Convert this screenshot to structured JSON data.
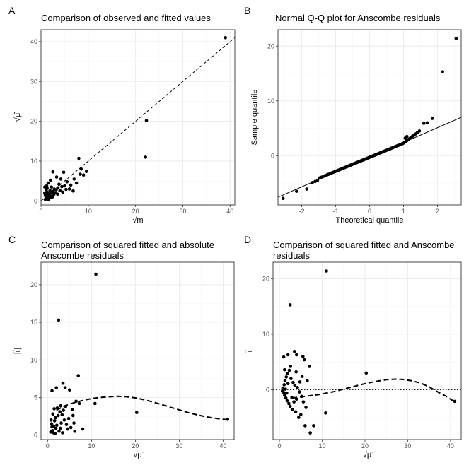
{
  "chart_data": [
    {
      "type": "scatter",
      "panel": "A",
      "title": "Comparison of observed and fitted values",
      "xlabel": "√m",
      "ylabel": "√μ̂",
      "xlim": [
        0,
        41
      ],
      "ylim": [
        -1,
        43
      ],
      "xticks": [
        0,
        10,
        20,
        30,
        40
      ],
      "yticks": [
        0,
        10,
        20,
        30,
        40
      ],
      "grid": true,
      "reference_line": {
        "kind": "dashed",
        "slope": 1,
        "intercept": 0
      },
      "points": [
        [
          39,
          41
        ],
        [
          22.3,
          20.2
        ],
        [
          22.1,
          11
        ],
        [
          8,
          10.7
        ],
        [
          8.5,
          8
        ],
        [
          9.6,
          7.4
        ],
        [
          8.3,
          6.7
        ],
        [
          9,
          6.5
        ],
        [
          7,
          5.5
        ],
        [
          7.5,
          4.5
        ],
        [
          6.3,
          4
        ],
        [
          5.5,
          4.8
        ],
        [
          2.5,
          7.3
        ],
        [
          4.8,
          7.2
        ],
        [
          3.3,
          6
        ],
        [
          4.2,
          5.5
        ],
        [
          2,
          5.2
        ],
        [
          1.5,
          4.5
        ],
        [
          1.2,
          3.8
        ],
        [
          2.2,
          3.5
        ],
        [
          2.8,
          3
        ],
        [
          3.6,
          3.3
        ],
        [
          4.4,
          3.6
        ],
        [
          5,
          3.8
        ],
        [
          6,
          3
        ],
        [
          6.8,
          2.5
        ],
        [
          1.1,
          2.8
        ],
        [
          1.3,
          2.2
        ],
        [
          1.6,
          1.8
        ],
        [
          1.8,
          1.5
        ],
        [
          2.1,
          1.2
        ],
        [
          2.4,
          1
        ],
        [
          2.6,
          2.4
        ],
        [
          3,
          2
        ],
        [
          3.5,
          1.7
        ],
        [
          4,
          2.6
        ],
        [
          0.9,
          1.5
        ],
        [
          1,
          1.2
        ],
        [
          1.1,
          0.9
        ],
        [
          1.2,
          0.7
        ],
        [
          1.4,
          0.6
        ],
        [
          1.5,
          1
        ],
        [
          1.7,
          1.3
        ],
        [
          0.8,
          2
        ],
        [
          0.9,
          0.4
        ],
        [
          1.3,
          3.2
        ],
        [
          1.9,
          2.6
        ],
        [
          2.3,
          2.1
        ],
        [
          3.2,
          2.8
        ],
        [
          3.8,
          4.2
        ],
        [
          4.6,
          2.2
        ],
        [
          5.3,
          2.9
        ],
        [
          0.8,
          3.5
        ],
        [
          1.6,
          0.3
        ],
        [
          2,
          0.8
        ],
        [
          2.7,
          1.6
        ]
      ]
    },
    {
      "type": "scatter",
      "panel": "B",
      "title": "Normal Q-Q plot for Anscombe residuals",
      "xlabel": "Theoretical quantile",
      "ylabel": "Sample quantile",
      "xlim": [
        -2.7,
        2.7
      ],
      "ylim": [
        -9,
        23
      ],
      "xticks": [
        -2,
        -1,
        0,
        1,
        2
      ],
      "yticks": [
        0,
        10,
        20
      ],
      "grid": true,
      "reference_line": {
        "kind": "solid",
        "slope": 2.7,
        "intercept": -0.3
      },
      "qq_points": {
        "n": 120,
        "tail_upper": [
          [
            1.6,
            5.9
          ],
          [
            1.7,
            6
          ],
          [
            1.85,
            6.8
          ],
          [
            2.15,
            15.3
          ],
          [
            2.55,
            21.4
          ]
        ],
        "tail_lower": [
          [
            -2.55,
            -7.8
          ],
          [
            -2.15,
            -6.5
          ],
          [
            -1.85,
            -6.1
          ]
        ]
      }
    },
    {
      "type": "scatter",
      "panel": "C",
      "title": "Comparison of squared fitted and absolute",
      "subtitle": "Anscombe residuals",
      "xlabel": "√μ̂",
      "ylabel": "|r̂|",
      "xlim": [
        -1.5,
        42.5
      ],
      "ylim": [
        -0.6,
        23
      ],
      "xticks": [
        0,
        10,
        20,
        30,
        40
      ],
      "yticks": [
        0,
        5,
        10,
        15,
        20
      ],
      "grid": true,
      "smooth_line": {
        "kind": "dashed",
        "x": [
          2,
          4,
          6,
          8,
          10,
          12,
          14,
          16,
          18,
          20,
          22,
          24,
          26,
          28,
          30,
          32,
          34,
          36,
          38,
          40,
          41
        ],
        "y": [
          3.3,
          3.9,
          4.3,
          4.6,
          4.85,
          5.0,
          5.1,
          5.15,
          5.1,
          4.95,
          4.7,
          4.4,
          4.05,
          3.7,
          3.35,
          3.0,
          2.7,
          2.45,
          2.25,
          2.1,
          2.05
        ]
      },
      "points": [
        [
          11,
          21.4
        ],
        [
          2.5,
          15.3
        ],
        [
          7,
          7.9
        ],
        [
          1,
          5.9
        ],
        [
          2,
          6.3
        ],
        [
          3.5,
          6.9
        ],
        [
          4,
          6.3
        ],
        [
          5,
          6
        ],
        [
          6.5,
          4.5
        ],
        [
          7.2,
          4.2
        ],
        [
          10.8,
          4.2
        ],
        [
          20.3,
          3
        ],
        [
          41,
          2.1
        ],
        [
          8,
          0.8
        ],
        [
          6,
          1.6
        ],
        [
          4.8,
          2.2
        ],
        [
          3,
          3.9
        ],
        [
          2.2,
          3.6
        ],
        [
          1.5,
          3.5
        ],
        [
          1.2,
          2.8
        ],
        [
          0.8,
          2
        ],
        [
          0.9,
          1.5
        ],
        [
          1,
          1.1
        ],
        [
          1.1,
          0.6
        ],
        [
          1.3,
          0.3
        ],
        [
          1.6,
          1.9
        ],
        [
          1.8,
          2.3
        ],
        [
          2.4,
          2.6
        ],
        [
          2.8,
          3.1
        ],
        [
          3.3,
          2.7
        ],
        [
          3.8,
          2
        ],
        [
          4.3,
          1.4
        ],
        [
          4.6,
          0.8
        ],
        [
          5.3,
          1
        ],
        [
          1.9,
          0.9
        ],
        [
          2.1,
          1.3
        ],
        [
          2.6,
          0.5
        ],
        [
          3.1,
          1.6
        ],
        [
          3.6,
          3.3
        ],
        [
          4.1,
          3.8
        ],
        [
          5.6,
          3.4
        ],
        [
          1.4,
          1.2
        ],
        [
          0.7,
          0.4
        ],
        [
          1.7,
          0.2
        ],
        [
          2.9,
          0.9
        ],
        [
          3.4,
          0.3
        ],
        [
          5.8,
          2.6
        ],
        [
          6.2,
          0.5
        ]
      ]
    },
    {
      "type": "scatter",
      "panel": "D",
      "title": "Comparison of squared fitted and Anscombe",
      "subtitle": "residuals",
      "xlabel": "√μ̂",
      "ylabel": "r̂",
      "xlim": [
        -1.5,
        42.5
      ],
      "ylim": [
        -9,
        23
      ],
      "xticks": [
        0,
        10,
        20,
        30,
        40
      ],
      "yticks": [
        0,
        10,
        20
      ],
      "grid": true,
      "zero_line": {
        "kind": "dotted",
        "y": 0
      },
      "smooth_line": {
        "kind": "dashed",
        "x": [
          3,
          5,
          7,
          9,
          11,
          13,
          15,
          17,
          19,
          21,
          23,
          25,
          27,
          29,
          31,
          33,
          35,
          37,
          39,
          41
        ],
        "y": [
          -1.5,
          -1.3,
          -1.1,
          -0.9,
          -0.6,
          -0.3,
          0.1,
          0.5,
          0.9,
          1.25,
          1.55,
          1.8,
          1.9,
          1.85,
          1.6,
          1.2,
          0.5,
          -0.4,
          -1.2,
          -2.2
        ]
      },
      "points": [
        [
          11,
          21.4
        ],
        [
          2.5,
          15.3
        ],
        [
          1,
          5.9
        ],
        [
          2,
          6.3
        ],
        [
          3.5,
          6.9
        ],
        [
          4,
          6.3
        ],
        [
          5.5,
          6
        ],
        [
          5.8,
          5.4
        ],
        [
          7,
          4.2
        ],
        [
          6.5,
          1.6
        ],
        [
          20.3,
          3
        ],
        [
          10.8,
          -4.2
        ],
        [
          41,
          -2.1
        ],
        [
          8,
          -6.5
        ],
        [
          7.2,
          -7.8
        ],
        [
          6,
          -6.5
        ],
        [
          5,
          -4.5
        ],
        [
          4.5,
          -5
        ],
        [
          3.8,
          -4
        ],
        [
          3,
          -3.6
        ],
        [
          2.5,
          -3
        ],
        [
          2.2,
          -2.5
        ],
        [
          1.8,
          -2
        ],
        [
          1.5,
          -1.5
        ],
        [
          1.2,
          -1
        ],
        [
          1,
          -0.5
        ],
        [
          0.8,
          0.3
        ],
        [
          1.1,
          0.9
        ],
        [
          1.3,
          1.6
        ],
        [
          1.6,
          2.3
        ],
        [
          1.9,
          2.9
        ],
        [
          2.3,
          3.5
        ],
        [
          2.7,
          2
        ],
        [
          3.2,
          1.3
        ],
        [
          3.6,
          0.8
        ],
        [
          4.2,
          0.4
        ],
        [
          4.7,
          -0.4
        ],
        [
          5.2,
          -1.2
        ],
        [
          5.6,
          -2.2
        ],
        [
          6.2,
          -3.2
        ],
        [
          1.4,
          0.1
        ],
        [
          1.7,
          -0.6
        ],
        [
          2,
          1.1
        ],
        [
          2.9,
          -1.4
        ],
        [
          3.4,
          -2.2
        ],
        [
          4,
          -1.7
        ],
        [
          4.8,
          1.4
        ],
        [
          5.3,
          2.4
        ],
        [
          0.7,
          -0.2
        ],
        [
          1.2,
          3.6
        ],
        [
          2.6,
          4.2
        ],
        [
          3.9,
          3.2
        ]
      ]
    }
  ]
}
